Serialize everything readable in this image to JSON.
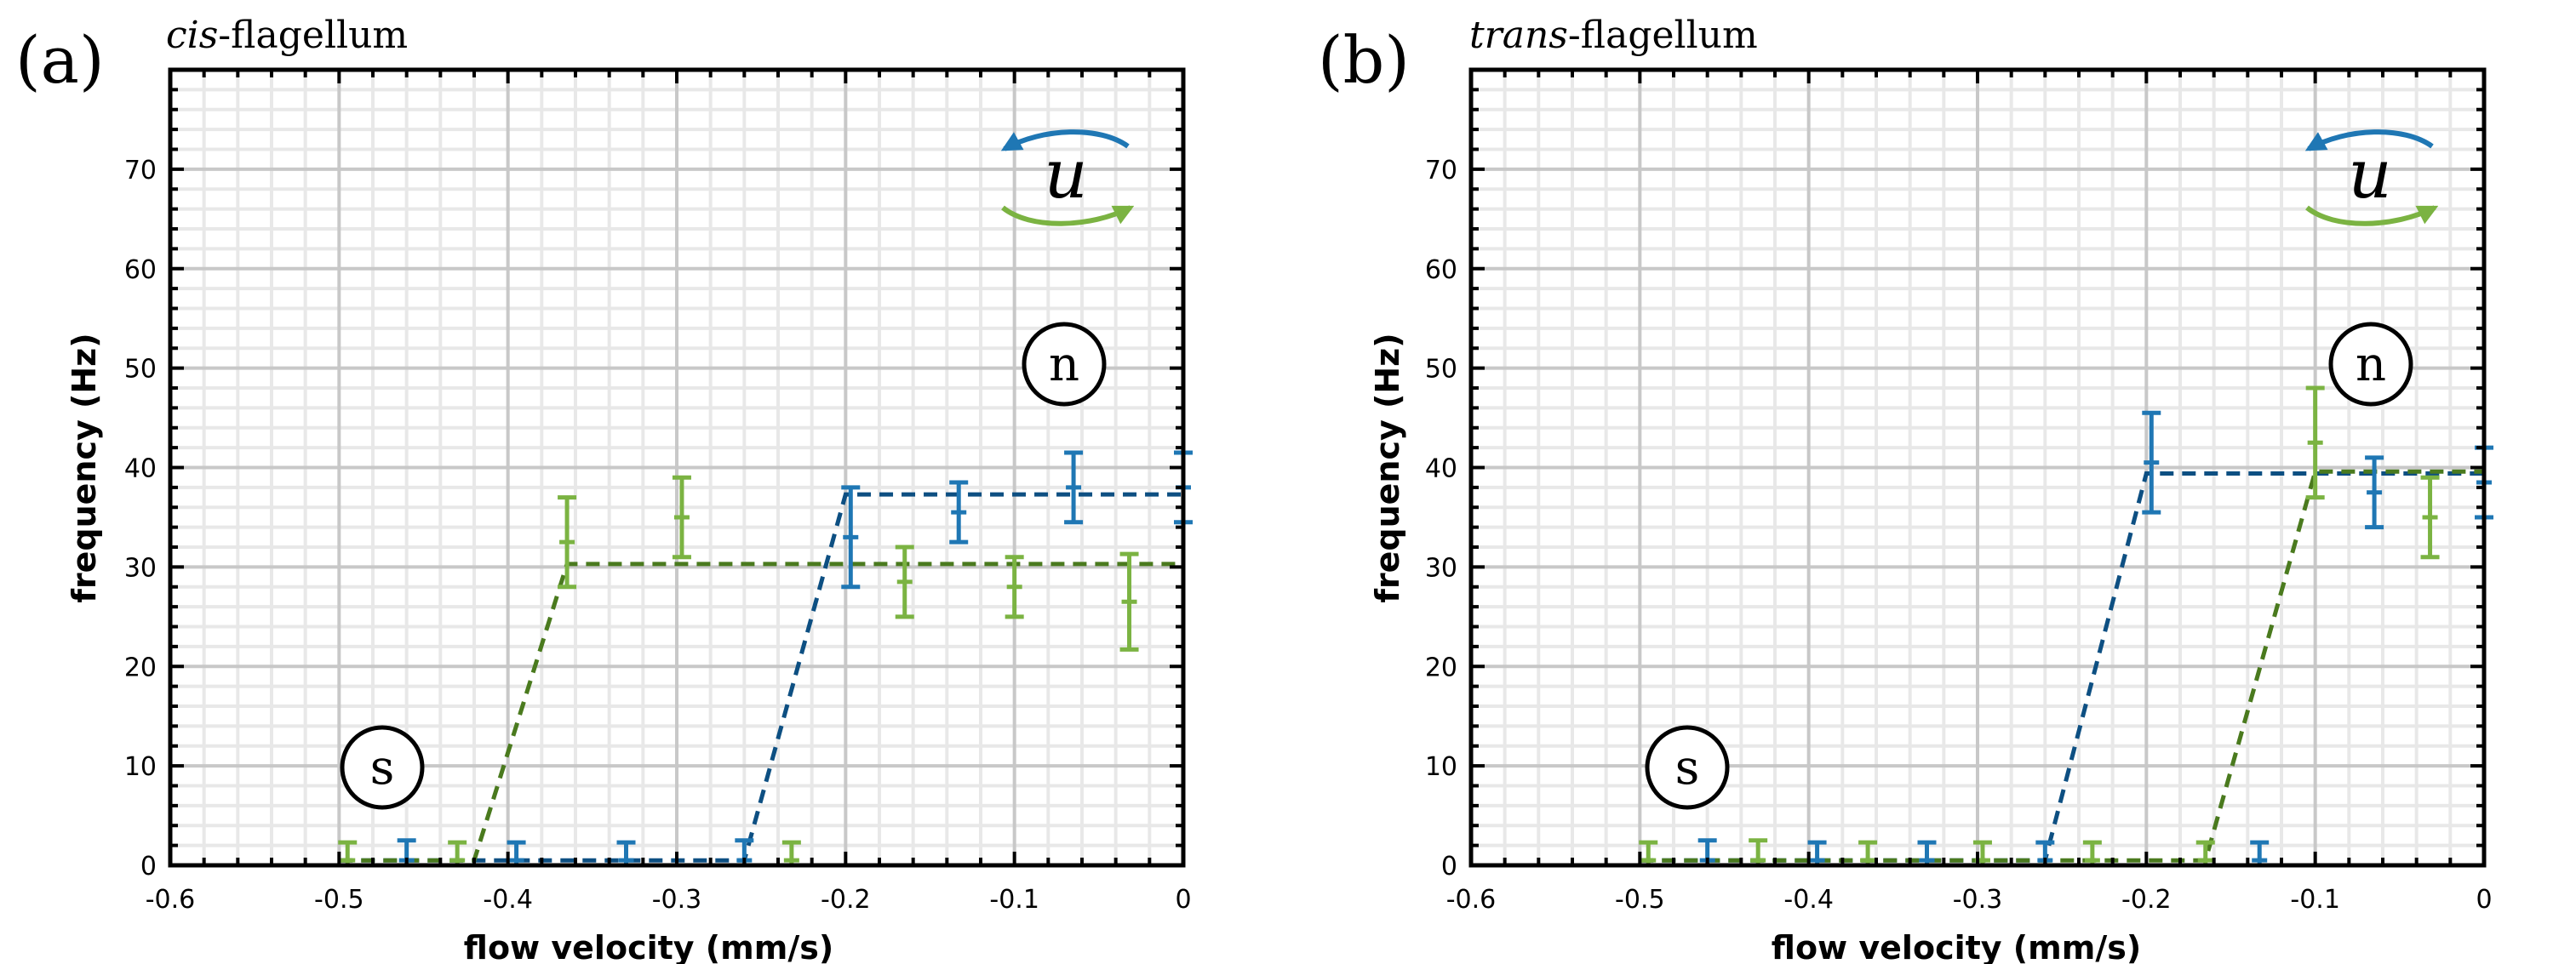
{
  "colors": {
    "blue": "#1f77b4",
    "blue_dashed": "#0d4f82",
    "green": "#7bb342",
    "green_dashed": "#4a7a1e",
    "grid_major": "#c8c8c8",
    "grid_minor": "#e8e8e8"
  },
  "chart_data": [
    {
      "type": "scatter",
      "panel_letter": "(a)",
      "title_italic": "cis",
      "title_rest": "-flagellum",
      "xlabel": "flow velocity (mm/s)",
      "ylabel": "frequency (Hz)",
      "xlim": [
        -0.6,
        0
      ],
      "ylim": [
        0,
        80
      ],
      "xticks": [
        "-0.6",
        "-0.5",
        "-0.4",
        "-0.3",
        "-0.2",
        "-0.1",
        "0"
      ],
      "yticks": [
        "0",
        "10",
        "20",
        "30",
        "40",
        "50",
        "60",
        "70"
      ],
      "grid": true,
      "labels": {
        "slow": "s",
        "normal": "n",
        "u": "u"
      },
      "series": [
        {
          "name": "blue",
          "color": "#1f77b4",
          "points": [
            {
              "x": -0.46,
              "y": 0.5,
              "err": 2
            },
            {
              "x": -0.395,
              "y": 0.5,
              "err": 1.8
            },
            {
              "x": -0.33,
              "y": 0.5,
              "err": 1.8
            },
            {
              "x": -0.26,
              "y": 0.5,
              "err": 2
            },
            {
              "x": -0.197,
              "y": 33,
              "err": 5
            },
            {
              "x": -0.133,
              "y": 35.5,
              "err": 3
            },
            {
              "x": -0.065,
              "y": 38,
              "err": 3.5
            },
            {
              "x": 0,
              "y": 38,
              "err": 3.5
            }
          ],
          "fit": [
            [
              -0.5,
              0.5
            ],
            [
              -0.26,
              0.5
            ],
            [
              -0.2,
              37.3
            ],
            [
              0,
              37.3
            ]
          ]
        },
        {
          "name": "green",
          "color": "#7bb342",
          "points": [
            {
              "x": -0.495,
              "y": 0.5,
              "err": 1.8
            },
            {
              "x": -0.43,
              "y": 0.5,
              "err": 1.8
            },
            {
              "x": -0.365,
              "y": 32.5,
              "err": 4.5
            },
            {
              "x": -0.297,
              "y": 35,
              "err": 4
            },
            {
              "x": -0.232,
              "y": 0.5,
              "err": 1.8
            },
            {
              "x": -0.165,
              "y": 28.5,
              "err": 3.5
            },
            {
              "x": -0.1,
              "y": 28,
              "err": 3
            },
            {
              "x": -0.032,
              "y": 26.5,
              "err": 4.8
            }
          ],
          "fit": [
            [
              -0.5,
              0.5
            ],
            [
              -0.42,
              0.5
            ],
            [
              -0.365,
              30.3
            ],
            [
              0,
              30.3
            ]
          ]
        }
      ]
    },
    {
      "type": "scatter",
      "panel_letter": "(b)",
      "title_italic": "trans",
      "title_rest": "-flagellum",
      "xlabel": "flow velocity (mm/s)",
      "ylabel": "frequency (Hz)",
      "xlim": [
        -0.6,
        0
      ],
      "ylim": [
        0,
        80
      ],
      "xticks": [
        "-0.6",
        "-0.5",
        "-0.4",
        "-0.3",
        "-0.2",
        "-0.1",
        "0"
      ],
      "yticks": [
        "0",
        "10",
        "20",
        "30",
        "40",
        "50",
        "60",
        "70"
      ],
      "grid": true,
      "labels": {
        "slow": "s",
        "normal": "n",
        "u": "u"
      },
      "series": [
        {
          "name": "blue",
          "color": "#1f77b4",
          "points": [
            {
              "x": -0.46,
              "y": 0.5,
              "err": 2
            },
            {
              "x": -0.395,
              "y": 0.5,
              "err": 1.8
            },
            {
              "x": -0.33,
              "y": 0.5,
              "err": 1.8
            },
            {
              "x": -0.26,
              "y": 0.5,
              "err": 1.8
            },
            {
              "x": -0.197,
              "y": 40.5,
              "err": 5
            },
            {
              "x": -0.133,
              "y": 0.5,
              "err": 1.8
            },
            {
              "x": -0.065,
              "y": 37.5,
              "err": 3.5
            },
            {
              "x": 0,
              "y": 38.5,
              "err": 3.5
            }
          ],
          "fit": [
            [
              -0.5,
              0.5
            ],
            [
              -0.26,
              0.5
            ],
            [
              -0.2,
              39.4
            ],
            [
              0,
              39.4
            ]
          ]
        },
        {
          "name": "green",
          "color": "#7bb342",
          "points": [
            {
              "x": -0.495,
              "y": 0.5,
              "err": 1.8
            },
            {
              "x": -0.43,
              "y": 0.5,
              "err": 2
            },
            {
              "x": -0.365,
              "y": 0.5,
              "err": 1.8
            },
            {
              "x": -0.297,
              "y": 0.5,
              "err": 1.8
            },
            {
              "x": -0.232,
              "y": 0.5,
              "err": 1.8
            },
            {
              "x": -0.165,
              "y": 0.5,
              "err": 1.8
            },
            {
              "x": -0.1,
              "y": 42.5,
              "err": 5.5
            },
            {
              "x": -0.032,
              "y": 35,
              "err": 4
            }
          ],
          "fit": [
            [
              -0.5,
              0.5
            ],
            [
              -0.165,
              0.5
            ],
            [
              -0.1,
              39.6
            ],
            [
              0,
              39.6
            ]
          ]
        }
      ]
    }
  ]
}
